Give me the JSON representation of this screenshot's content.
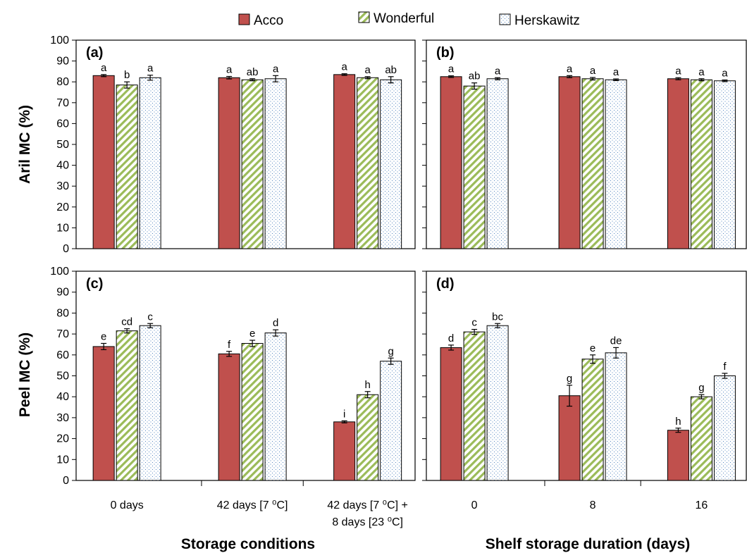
{
  "legend": [
    "Acco",
    "Wonderful",
    "Herskawitz"
  ],
  "colors": {
    "acco": "#c0504d",
    "wonderful_fill": "#ffffff",
    "wonderful_stripe": "#9bbb59",
    "herskawitz_dot": "#4f81bd"
  },
  "chart_data": [
    {
      "type": "bar",
      "panel": "(a)",
      "ylabel": "Aril MC (%)",
      "xlabel": "",
      "ylim": [
        0,
        100
      ],
      "yticks": [
        0,
        10,
        20,
        30,
        40,
        50,
        60,
        70,
        80,
        90,
        100
      ],
      "categories": [
        "",
        "",
        ""
      ],
      "series": [
        {
          "name": "Acco",
          "values": [
            83,
            82,
            83.5
          ],
          "err": [
            0.5,
            0.6,
            0.4
          ],
          "letters": [
            "a",
            "a",
            "a"
          ]
        },
        {
          "name": "Wonderful",
          "values": [
            78.5,
            81,
            82
          ],
          "err": [
            1.5,
            0.5,
            0.5
          ],
          "letters": [
            "b",
            "ab",
            "a"
          ]
        },
        {
          "name": "Herskawitz",
          "values": [
            82,
            81.5,
            81
          ],
          "err": [
            1.2,
            1.5,
            1.5
          ],
          "letters": [
            "a",
            "a",
            "ab"
          ]
        }
      ]
    },
    {
      "type": "bar",
      "panel": "(b)",
      "ylabel": "",
      "xlabel": "",
      "ylim": [
        0,
        100
      ],
      "yticks": [
        0,
        10,
        20,
        30,
        40,
        50,
        60,
        70,
        80,
        90,
        100
      ],
      "categories": [
        "",
        "",
        ""
      ],
      "series": [
        {
          "name": "Acco",
          "values": [
            82.5,
            82.5,
            81.5
          ],
          "err": [
            0.4,
            0.5,
            0.5
          ],
          "letters": [
            "a",
            "a",
            "a"
          ]
        },
        {
          "name": "Wonderful",
          "values": [
            78,
            81.5,
            81
          ],
          "err": [
            1.5,
            0.6,
            0.5
          ],
          "letters": [
            "ab",
            "a",
            "a"
          ]
        },
        {
          "name": "Herskawitz",
          "values": [
            81.5,
            81,
            80.5
          ],
          "err": [
            0.5,
            0.4,
            0.4
          ],
          "letters": [
            "a",
            "a",
            "a"
          ]
        }
      ]
    },
    {
      "type": "bar",
      "panel": "(c)",
      "ylabel": "Peel MC (%)",
      "xlabel": "Storage conditions",
      "ylim": [
        0,
        100
      ],
      "yticks": [
        0,
        10,
        20,
        30,
        40,
        50,
        60,
        70,
        80,
        90,
        100
      ],
      "categories": [
        "0 days",
        "42 days [7 ⁰C]",
        "42 days [7 ⁰C] +|8 days  [23 ⁰C]"
      ],
      "series": [
        {
          "name": "Acco",
          "values": [
            64,
            60.5,
            28
          ],
          "err": [
            1.5,
            1.2,
            0.5
          ],
          "letters": [
            "e",
            "f",
            "i"
          ]
        },
        {
          "name": "Wonderful",
          "values": [
            71.5,
            65.5,
            41
          ],
          "err": [
            1.0,
            1.5,
            1.5
          ],
          "letters": [
            "cd",
            "e",
            "h"
          ]
        },
        {
          "name": "Herskawitz",
          "values": [
            74,
            70.5,
            57
          ],
          "err": [
            1.0,
            1.5,
            1.5
          ],
          "letters": [
            "c",
            "d",
            "g"
          ]
        }
      ]
    },
    {
      "type": "bar",
      "panel": "(d)",
      "ylabel": "",
      "xlabel": "Shelf storage duration  (days)",
      "ylim": [
        0,
        100
      ],
      "yticks": [
        0,
        10,
        20,
        30,
        40,
        50,
        60,
        70,
        80,
        90,
        100
      ],
      "categories": [
        "0",
        "8",
        "16"
      ],
      "series": [
        {
          "name": "Acco",
          "values": [
            63.5,
            40.5,
            24
          ],
          "err": [
            1.2,
            5.0,
            1.0
          ],
          "letters": [
            "d",
            "g",
            "h"
          ]
        },
        {
          "name": "Wonderful",
          "values": [
            71,
            58,
            40
          ],
          "err": [
            1.2,
            2.0,
            1.0
          ],
          "letters": [
            "c",
            "e",
            "g"
          ]
        },
        {
          "name": "Herskawitz",
          "values": [
            74,
            61,
            50
          ],
          "err": [
            1.0,
            2.5,
            1.2
          ],
          "letters": [
            "bc",
            "de",
            "f"
          ]
        }
      ]
    }
  ]
}
